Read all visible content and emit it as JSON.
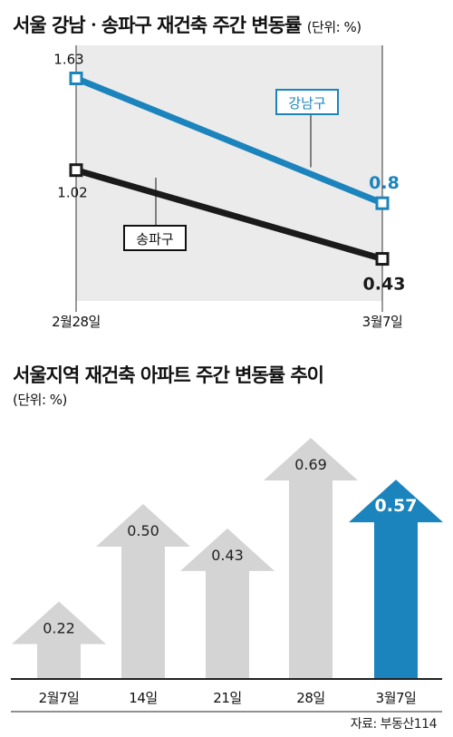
{
  "chart_data": [
    {
      "type": "line",
      "title": "서울 강남ㆍ송파구 재건축 주간 변동률",
      "unit": "(단위: %)",
      "categories": [
        "2월28일",
        "3월7일"
      ],
      "series": [
        {
          "name": "강남구",
          "values": [
            1.63,
            0.8
          ],
          "labels": [
            "1.63",
            "0.8"
          ],
          "color": "#1b84bd"
        },
        {
          "name": "송파구",
          "values": [
            1.02,
            0.43
          ],
          "labels": [
            "1.02",
            "0.43"
          ],
          "color": "#1a1a1a"
        }
      ],
      "ylim": [
        0.15,
        1.85
      ]
    },
    {
      "type": "bar",
      "title": "서울지역 재건축 아파트 주간 변동률 추이",
      "unit": "(단위: %)",
      "categories": [
        "2월7일",
        "14일",
        "21일",
        "28일",
        "3월7일"
      ],
      "values": [
        0.22,
        0.5,
        0.43,
        0.69,
        0.57
      ],
      "labels": [
        "0.22",
        "0.50",
        "0.43",
        "0.69",
        "0.57"
      ],
      "highlight_index": 4,
      "colors": {
        "default": "#d4d4d4",
        "highlight": "#1b84bd"
      }
    }
  ],
  "source": "자료: 부동산114"
}
